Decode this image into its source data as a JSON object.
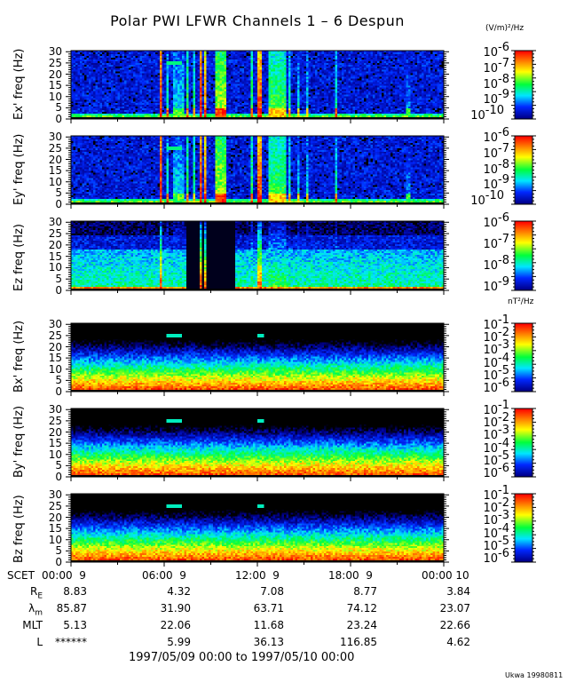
{
  "chart_data": {
    "type": "heatmap",
    "title": "Polar PWI LFWR Channels 1 – 6 Despun",
    "x_range_label": "1997/05/09 00:00 to 1997/05/10 00:00",
    "xlim": [
      "1997-05-09 00:00",
      "1997-05-10 00:00"
    ],
    "x_ticks": [
      "00:00  9",
      "06:00  9",
      "12:00  9",
      "18:00  9",
      "00:00 10"
    ],
    "x_tick_prefix": "SCET",
    "y_ticks": [
      "30",
      "25",
      "20",
      "15",
      "10",
      "5",
      "0"
    ],
    "ylim": [
      0,
      30
    ],
    "colormap": [
      "#000000",
      "#0000a0",
      "#0040ff",
      "#00e0ff",
      "#00ff40",
      "#ffff00",
      "#ff8000",
      "#ff0000"
    ],
    "e_units": "(V/m)²/Hz",
    "b_units": "nT²/Hz",
    "panels": [
      {
        "ylabel": "Ex' freq (Hz)",
        "kind": "E",
        "colorbar_exponents": [
          "-6",
          "-7",
          "-8",
          "-9",
          "-10"
        ],
        "zlim": [
          1e-10,
          1e-06
        ]
      },
      {
        "ylabel": "Ey' freq (Hz)",
        "kind": "E",
        "colorbar_exponents": [
          "-6",
          "-7",
          "-8",
          "-9",
          "-10"
        ],
        "zlim": [
          1e-10,
          1e-06
        ]
      },
      {
        "ylabel": "Ez freq (Hz)",
        "kind": "Ez",
        "colorbar_exponents": [
          "-6",
          "-7",
          "-8",
          "-9"
        ],
        "zlim": [
          1e-09,
          1e-06
        ]
      },
      {
        "ylabel": "Bx' freq (Hz)",
        "kind": "B",
        "colorbar_exponents": [
          "-1",
          "-2",
          "-3",
          "-4",
          "-5",
          "-6"
        ],
        "zlim": [
          1e-06,
          0.1
        ]
      },
      {
        "ylabel": "By' freq (Hz)",
        "kind": "B",
        "colorbar_exponents": [
          "-1",
          "-2",
          "-3",
          "-4",
          "-5",
          "-6"
        ],
        "zlim": [
          1e-06,
          0.1
        ]
      },
      {
        "ylabel": "Bz freq (Hz)",
        "kind": "B",
        "colorbar_exponents": [
          "-1",
          "-2",
          "-3",
          "-4",
          "-5",
          "-6"
        ],
        "zlim": [
          1e-06,
          0.1
        ]
      }
    ],
    "ephemeris": [
      {
        "label": "R",
        "sub": "E",
        "values": [
          "8.83",
          "4.32",
          "7.08",
          "8.77",
          "3.84"
        ]
      },
      {
        "label": "λ",
        "sub": "m",
        "values": [
          "85.87",
          "31.90",
          "63.71",
          "74.12",
          "23.07"
        ]
      },
      {
        "label": "MLT",
        "sub": "",
        "values": [
          "5.13",
          "22.06",
          "11.68",
          "23.24",
          "22.66"
        ]
      },
      {
        "label": "L",
        "sub": "",
        "values": [
          "******",
          "5.99",
          "36.13",
          "116.85",
          "4.62"
        ]
      }
    ]
  },
  "credit": "Ukwa 19980811"
}
